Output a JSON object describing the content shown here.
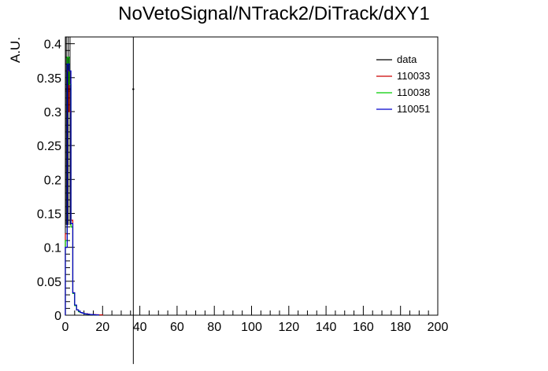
{
  "chart_data": {
    "type": "line",
    "title": "NoVetoSignal/NTrack2/DiTrack/dXY1",
    "xlabel": "",
    "ylabel": "A.U.",
    "xlim": [
      0,
      200
    ],
    "ylim": [
      0,
      0.41
    ],
    "x_ticks": [
      0,
      20,
      40,
      60,
      80,
      100,
      120,
      140,
      160,
      180,
      200
    ],
    "x_tick_labels": [
      "0",
      "20",
      "40",
      "60",
      "80",
      "100",
      "120",
      "140",
      "160",
      "180",
      "200"
    ],
    "y_ticks": [
      0,
      0.05,
      0.1,
      0.15,
      0.2,
      0.25,
      0.3,
      0.35,
      0.4
    ],
    "y_tick_labels": [
      "0",
      "0.05",
      "0.1",
      "0.15",
      "0.2",
      "0.25",
      "0.3",
      "0.35",
      "0.4"
    ],
    "grid": false,
    "legend_position": "top-right",
    "bin_width": 1,
    "series": [
      {
        "name": "data",
        "color": "#000000",
        "style": "points-with-errors",
        "points": [
          {
            "x": 0.5,
            "y": 0.333,
            "err": 0.2
          },
          {
            "x": 1.5,
            "y": 0.333,
            "err": 0.2
          },
          {
            "x": 2.5,
            "y": 0.333,
            "err": 0.2
          },
          {
            "x": 36.5,
            "y": 0.333,
            "err": 0.405
          }
        ]
      },
      {
        "name": "110033",
        "color": "#cc0000",
        "style": "hist",
        "x_start": 0,
        "values": [
          0.12,
          0.36,
          0.3,
          0.14,
          0.033,
          0.015,
          0.008,
          0.006,
          0.004,
          0.003,
          0.002,
          0.002,
          0.0015,
          0.001,
          0.001,
          0.001,
          0.0008,
          0.0006,
          0.0005,
          0.0004
        ]
      },
      {
        "name": "110038",
        "color": "#00cc00",
        "style": "hist",
        "x_start": 0,
        "values": [
          0.11,
          0.38,
          0.34,
          0.13,
          0.032,
          0.014,
          0.008,
          0.005,
          0.004,
          0.003,
          0.002,
          0.0015,
          0.0012,
          0.001,
          0.0008,
          0.0006,
          0.0005,
          0.0004
        ]
      },
      {
        "name": "110051",
        "color": "#0000cc",
        "style": "hist",
        "x_start": 0,
        "values": [
          0.1,
          0.37,
          0.36,
          0.135,
          0.033,
          0.015,
          0.008,
          0.006,
          0.004,
          0.003,
          0.002,
          0.0017,
          0.0013,
          0.001,
          0.0009,
          0.0007,
          0.0005,
          0.0004
        ]
      }
    ]
  }
}
